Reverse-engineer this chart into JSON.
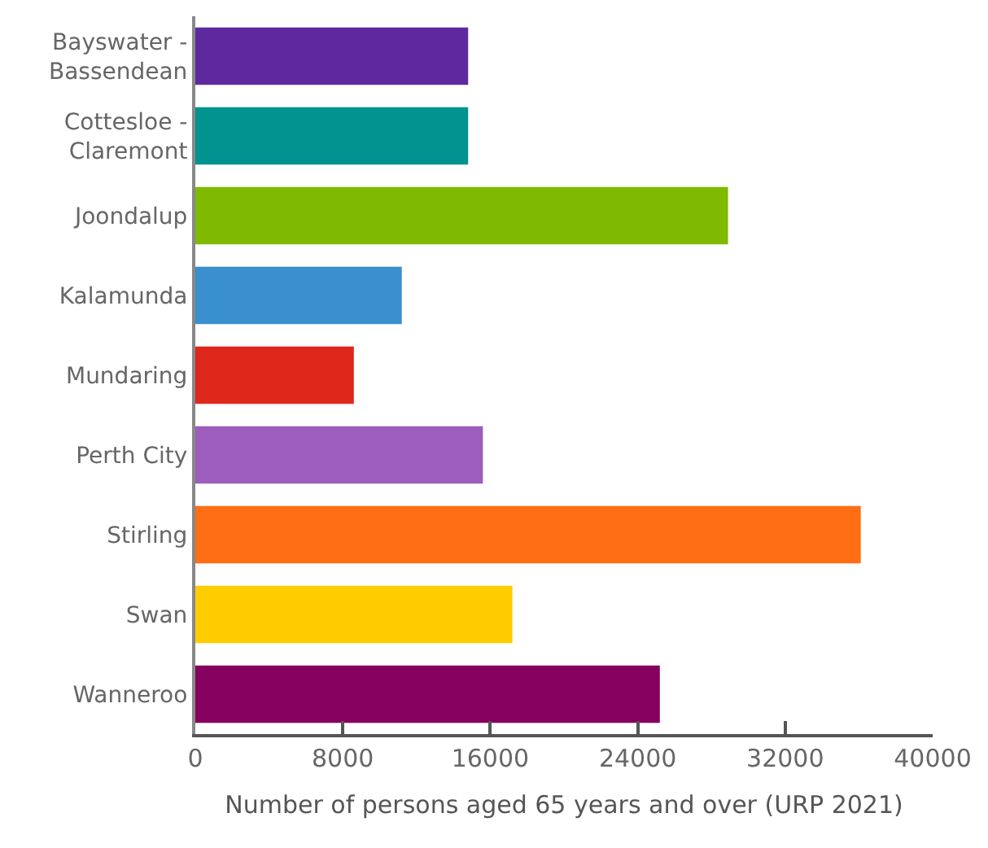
{
  "chart_data": {
    "type": "bar",
    "orientation": "horizontal",
    "xlabel": "Number of persons aged 65 years and over (URP 2021)",
    "categories": [
      "Bayswater -\nBassendean",
      "Cottesloe -\nClaremont",
      "Joondalup",
      "Kalamunda",
      "Mundaring",
      "Perth City",
      "Stirling",
      "Swan",
      "Wanneroo"
    ],
    "values": [
      14800,
      14800,
      28900,
      11200,
      8600,
      15600,
      36100,
      17200,
      25200
    ],
    "colors": [
      "#5e299e",
      "#00938f",
      "#7fba00",
      "#3a8fce",
      "#de281c",
      "#9c5dbd",
      "#ff6d14",
      "#ffcc00",
      "#86005f"
    ],
    "xlim": [
      0,
      40000
    ],
    "xticks": [
      0,
      8000,
      16000,
      24000,
      32000,
      40000
    ],
    "legend": false
  }
}
